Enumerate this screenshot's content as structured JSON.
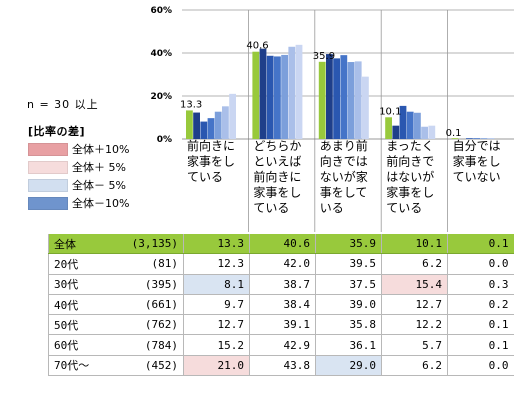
{
  "note": "n = 30 以上",
  "legend": {
    "title": "[比率の差]",
    "items": [
      {
        "label": "全体＋10%",
        "color": "#e8a0a3"
      },
      {
        "label": "全体＋ 5%",
        "color": "#f6dcdc"
      },
      {
        "label": "全体－ 5%",
        "color": "#d2dff0"
      },
      {
        "label": "全体－10%",
        "color": "#6f94cd"
      }
    ]
  },
  "chart_data": {
    "type": "bar",
    "ylim": [
      0,
      60
    ],
    "yticks": [
      "0%",
      "20%",
      "40%",
      "60%"
    ],
    "categories": [
      "前向きに\n家事をし\nている",
      "どちらか\nといえば\n前向きに\n家事をし\nている",
      "あまり前\n向きでは\nないが家\n事をして\nいる",
      "まったく\n前向きで\nはないが\n家事をし\nている",
      "自分では\n家事をし\nていない"
    ],
    "series": [
      {
        "name": "全体",
        "values": [
          13.3,
          40.6,
          35.9,
          10.1,
          0.1
        ],
        "color": "#98c93c"
      },
      {
        "name": "20代",
        "values": [
          12.3,
          42.0,
          39.5,
          6.2,
          0.0
        ],
        "color": "#1f3f8a"
      },
      {
        "name": "30代",
        "values": [
          8.1,
          38.7,
          37.5,
          15.4,
          0.3
        ],
        "color": "#2a57b0"
      },
      {
        "name": "40代",
        "values": [
          9.7,
          38.4,
          39.0,
          12.7,
          0.2
        ],
        "color": "#4574c8"
      },
      {
        "name": "50代",
        "values": [
          12.7,
          39.1,
          35.8,
          12.2,
          0.1
        ],
        "color": "#7c9fdb"
      },
      {
        "name": "60代",
        "values": [
          15.2,
          42.9,
          36.1,
          5.7,
          0.1
        ],
        "color": "#aabfe9"
      },
      {
        "name": "70代～",
        "values": [
          21.0,
          43.8,
          29.0,
          6.2,
          0.0
        ],
        "color": "#cad6f2"
      }
    ],
    "value_labels": [
      "13.3",
      "40.6",
      "35.9",
      "10.1",
      "0.1"
    ]
  },
  "table": {
    "rows": [
      {
        "age": "全体",
        "n": "(3,135)",
        "values": [
          "13.3",
          "40.6",
          "35.9",
          "10.1",
          "0.1"
        ],
        "highlights": [
          "",
          "",
          "",
          "",
          ""
        ],
        "total": true
      },
      {
        "age": "20代",
        "n": "(81)",
        "values": [
          "12.3",
          "42.0",
          "39.5",
          "6.2",
          "0.0"
        ],
        "highlights": [
          "",
          "",
          "",
          "",
          ""
        ]
      },
      {
        "age": "30代",
        "n": "(395)",
        "values": [
          "8.1",
          "38.7",
          "37.5",
          "15.4",
          "0.3"
        ],
        "highlights": [
          "#d9e4f2",
          "",
          "",
          "#f6dcdc",
          ""
        ]
      },
      {
        "age": "40代",
        "n": "(661)",
        "values": [
          "9.7",
          "38.4",
          "39.0",
          "12.7",
          "0.2"
        ],
        "highlights": [
          "",
          "",
          "",
          "",
          ""
        ]
      },
      {
        "age": "50代",
        "n": "(762)",
        "values": [
          "12.7",
          "39.1",
          "35.8",
          "12.2",
          "0.1"
        ],
        "highlights": [
          "",
          "",
          "",
          "",
          ""
        ]
      },
      {
        "age": "60代",
        "n": "(784)",
        "values": [
          "15.2",
          "42.9",
          "36.1",
          "5.7",
          "0.1"
        ],
        "highlights": [
          "",
          "",
          "",
          "",
          ""
        ]
      },
      {
        "age": "70代～",
        "n": "(452)",
        "values": [
          "21.0",
          "43.8",
          "29.0",
          "6.2",
          "0.0"
        ],
        "highlights": [
          "#f6dcdc",
          "",
          "#d9e4f2",
          "",
          ""
        ]
      }
    ]
  }
}
